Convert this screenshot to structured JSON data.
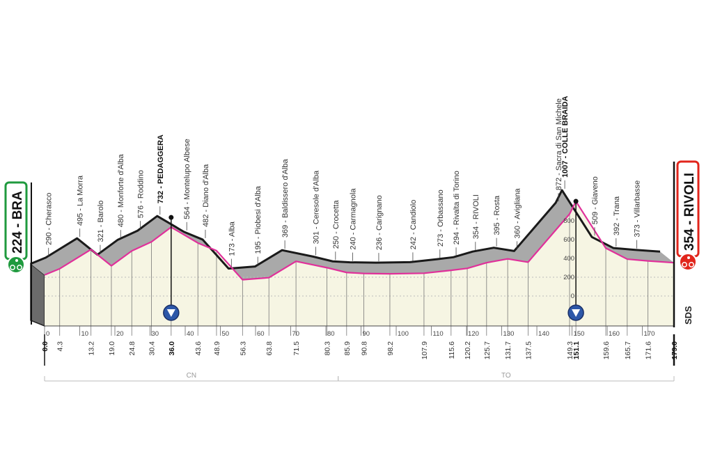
{
  "chart_data": {
    "type": "area",
    "xlabel": "",
    "ylabel": "",
    "xlim": [
      0,
      179
    ],
    "ylim": [
      0,
      1007
    ],
    "x_ticks": [
      0,
      10,
      20,
      30,
      40,
      50,
      60,
      70,
      80,
      90,
      100,
      110,
      120,
      130,
      140,
      150,
      160,
      170
    ],
    "elevation_scale_ticks": [
      800,
      600,
      400,
      200,
      0
    ],
    "start": {
      "label": "224 - BRA",
      "km": 0.0,
      "elevation": 224,
      "color": "#1f9a3e"
    },
    "finish": {
      "label": "354 - RIVOLI",
      "km": 179.0,
      "elevation": 354,
      "color": "#e1261c"
    },
    "points": [
      {
        "km": 0.0,
        "elevation": 224,
        "name": "",
        "km_label": "0.0",
        "bold": true
      },
      {
        "km": 4.3,
        "elevation": 290,
        "name": "290 - Cherasco",
        "km_label": "4.3"
      },
      {
        "km": 13.2,
        "elevation": 495,
        "name": "495 - La Morra",
        "km_label": "13.2"
      },
      {
        "km": 19.0,
        "elevation": 321,
        "name": "321 - Barolo",
        "km_label": "19.0"
      },
      {
        "km": 24.8,
        "elevation": 480,
        "name": "480 - Monforte d'Alba",
        "km_label": "24.8"
      },
      {
        "km": 30.4,
        "elevation": 576,
        "name": "576 - Roddino",
        "km_label": "30.4"
      },
      {
        "km": 36.0,
        "elevation": 732,
        "name": "732 - PEDAGGERA",
        "km_label": "36.0",
        "bold": true,
        "gpm": true
      },
      {
        "km": 43.6,
        "elevation": 564,
        "name": "564 - Montelupo Albese",
        "km_label": "43.6"
      },
      {
        "km": 48.9,
        "elevation": 482,
        "name": "482 - Diano d'Alba",
        "km_label": "48.9"
      },
      {
        "km": 56.3,
        "elevation": 173,
        "name": "173 - Alba",
        "km_label": "56.3"
      },
      {
        "km": 63.8,
        "elevation": 195,
        "name": "195 - Piobesi d'Alba",
        "km_label": "63.8"
      },
      {
        "km": 71.5,
        "elevation": 369,
        "name": "369 - Baldissero d'Alba",
        "km_label": "71.5"
      },
      {
        "km": 80.3,
        "elevation": 301,
        "name": "301 - Ceresole d'Alba",
        "km_label": "80.3"
      },
      {
        "km": 85.9,
        "elevation": 250,
        "name": "250 - Crocetta",
        "km_label": "85.9"
      },
      {
        "km": 90.8,
        "elevation": 240,
        "name": "240 - Carmagnola",
        "km_label": "90.8"
      },
      {
        "km": 98.2,
        "elevation": 236,
        "name": "236 - Carignano",
        "km_label": "98.2"
      },
      {
        "km": 107.9,
        "elevation": 242,
        "name": "242 - Candiolo",
        "km_label": "107.9"
      },
      {
        "km": 115.6,
        "elevation": 273,
        "name": "273 - Orbassano",
        "km_label": "115.6"
      },
      {
        "km": 120.2,
        "elevation": 294,
        "name": "294 - Rivalta di Torino",
        "km_label": "120.2"
      },
      {
        "km": 125.7,
        "elevation": 354,
        "name": "354 - RIVOLI",
        "km_label": "125.7"
      },
      {
        "km": 131.7,
        "elevation": 395,
        "name": "395 - Rosta",
        "km_label": "131.7"
      },
      {
        "km": 137.5,
        "elevation": 360,
        "name": "360 - Avigliana",
        "km_label": "137.5"
      },
      {
        "km": 149.3,
        "elevation": 872,
        "name": "872 - Sacra di San Michele",
        "km_label": "149.3"
      },
      {
        "km": 151.1,
        "elevation": 1007,
        "name": "1007 - COLLE BRAIDA",
        "km_label": "151.1",
        "bold": true,
        "gpm": true
      },
      {
        "km": 159.6,
        "elevation": 509,
        "name": "509 - Giaveno",
        "km_label": "159.6"
      },
      {
        "km": 165.7,
        "elevation": 392,
        "name": "392 - Trana",
        "km_label": "165.7"
      },
      {
        "km": 171.6,
        "elevation": 373,
        "name": "373 - Villarbasse",
        "km_label": "171.6"
      },
      {
        "km": 179.0,
        "elevation": 354,
        "name": "",
        "km_label": "179.0",
        "bold": true
      }
    ],
    "regions": [
      {
        "label": "CN",
        "from_km": 0,
        "to_km": 83.5
      },
      {
        "label": "TO",
        "from_km": 83.5,
        "to_km": 179
      }
    ],
    "colors": {
      "profile_line": "#e0309a",
      "ridge_line": "#1a1a1a",
      "ridge_fill": "#a9a9a9",
      "ground_fill": "#f6f5e3",
      "gpm_marker": "#2d57a8"
    }
  },
  "logo": "SDS"
}
